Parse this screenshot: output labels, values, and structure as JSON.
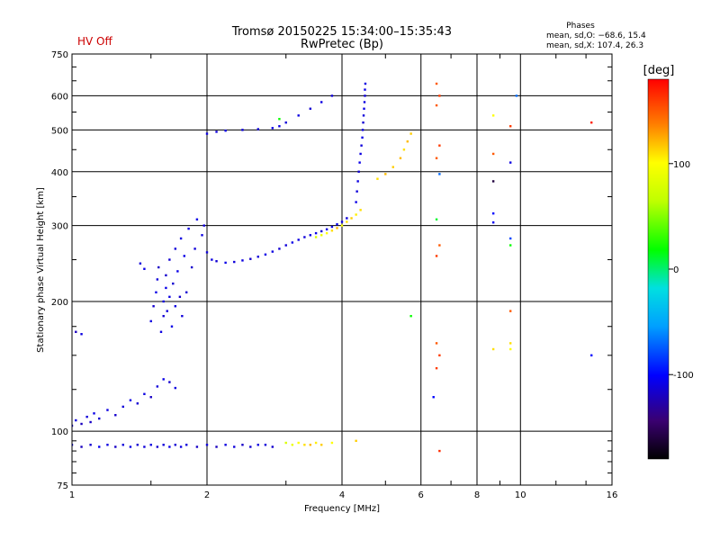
{
  "chart_data": {
    "type": "scatter",
    "title": "Tromsø 20150225 15:34:00–15:35:43",
    "subtitle": "RwPretec (Bp)",
    "status_label": "HV Off",
    "status_color": "#cc0000",
    "xlabel": "Frequency [MHz]",
    "ylabel": "Stationary phase Virtual Height [km]",
    "x_scale": "log",
    "y_scale": "log",
    "xlim": [
      1,
      16
    ],
    "ylim": [
      75,
      750
    ],
    "x_ticks": [
      1,
      2,
      4,
      6,
      8,
      10,
      16
    ],
    "x_tick_labels": [
      "1",
      "2",
      "4",
      "6",
      "8",
      "10",
      "16"
    ],
    "y_ticks": [
      75,
      100,
      200,
      300,
      400,
      500,
      600,
      750
    ],
    "y_tick_labels": [
      "75",
      "100",
      "200",
      "300",
      "400",
      "500",
      "600",
      "750"
    ],
    "grid": true,
    "colorbar": {
      "label": "[deg]",
      "range": [
        -180,
        180
      ],
      "ticks": [
        100,
        0,
        -100
      ],
      "tick_labels": [
        "100",
        "0",
        "-100"
      ]
    },
    "stats": {
      "heading": "Phases",
      "line1": "mean, sd,O: −68.6, 15.4",
      "line2": "mean, sd,X: 107.4, 26.3"
    },
    "points": [
      [
        1.0,
        93,
        -110
      ],
      [
        1.05,
        92,
        -120
      ],
      [
        1.1,
        93,
        -115
      ],
      [
        1.15,
        92,
        -105
      ],
      [
        1.2,
        93,
        -110
      ],
      [
        1.25,
        92,
        -118
      ],
      [
        1.3,
        93,
        -112
      ],
      [
        1.35,
        92,
        -108
      ],
      [
        1.4,
        93,
        -115
      ],
      [
        1.45,
        92,
        -112
      ],
      [
        1.5,
        93,
        -110
      ],
      [
        1.55,
        92,
        -116
      ],
      [
        1.6,
        93,
        -112
      ],
      [
        1.65,
        92,
        -108
      ],
      [
        1.7,
        93,
        -114
      ],
      [
        1.75,
        92,
        -110
      ],
      [
        1.8,
        93,
        -112
      ],
      [
        1.9,
        92,
        -118
      ],
      [
        2.0,
        93,
        -112
      ],
      [
        2.1,
        92,
        -120
      ],
      [
        2.2,
        93,
        -110
      ],
      [
        2.3,
        92,
        -112
      ],
      [
        2.4,
        93,
        -118
      ],
      [
        2.5,
        92,
        -114
      ],
      [
        2.6,
        93,
        -110
      ],
      [
        2.7,
        93,
        -112
      ],
      [
        2.8,
        92,
        -116
      ],
      [
        3.0,
        94,
        80
      ],
      [
        3.1,
        93,
        90
      ],
      [
        3.2,
        94,
        100
      ],
      [
        3.3,
        93,
        110
      ],
      [
        3.4,
        93,
        120
      ],
      [
        3.5,
        94,
        105
      ],
      [
        3.6,
        93,
        115
      ],
      [
        3.8,
        94,
        100
      ],
      [
        4.3,
        95,
        115
      ],
      [
        1.0,
        103,
        -115
      ],
      [
        1.02,
        106,
        -110
      ],
      [
        1.05,
        104,
        -120
      ],
      [
        1.08,
        108,
        -112
      ],
      [
        1.1,
        105,
        -118
      ],
      [
        1.12,
        110,
        -108
      ],
      [
        1.15,
        107,
        -115
      ],
      [
        1.2,
        112,
        -110
      ],
      [
        1.25,
        109,
        -116
      ],
      [
        1.3,
        114,
        -112
      ],
      [
        1.35,
        118,
        -108
      ],
      [
        1.4,
        116,
        -114
      ],
      [
        1.45,
        122,
        -110
      ],
      [
        1.5,
        120,
        -118
      ],
      [
        1.55,
        127,
        -112
      ],
      [
        1.6,
        132,
        -108
      ],
      [
        1.65,
        130,
        -115
      ],
      [
        1.7,
        126,
        -110
      ],
      [
        1.02,
        170,
        -120
      ],
      [
        1.05,
        168,
        -110
      ],
      [
        1.42,
        245,
        -112
      ],
      [
        1.45,
        238,
        -108
      ],
      [
        1.5,
        180,
        -110
      ],
      [
        1.52,
        195,
        -115
      ],
      [
        1.54,
        210,
        -108
      ],
      [
        1.55,
        225,
        -112
      ],
      [
        1.56,
        240,
        -118
      ],
      [
        1.58,
        170,
        -110
      ],
      [
        1.6,
        185,
        -114
      ],
      [
        1.6,
        200,
        -110
      ],
      [
        1.62,
        215,
        -108
      ],
      [
        1.62,
        230,
        -116
      ],
      [
        1.63,
        190,
        -112
      ],
      [
        1.65,
        205,
        -110
      ],
      [
        1.65,
        250,
        -114
      ],
      [
        1.67,
        175,
        -108
      ],
      [
        1.68,
        220,
        -115
      ],
      [
        1.7,
        195,
        -110
      ],
      [
        1.7,
        265,
        -112
      ],
      [
        1.72,
        235,
        -108
      ],
      [
        1.74,
        205,
        -116
      ],
      [
        1.75,
        280,
        -110
      ],
      [
        1.76,
        185,
        -112
      ],
      [
        1.78,
        255,
        -108
      ],
      [
        1.8,
        210,
        -114
      ],
      [
        1.82,
        295,
        -110
      ],
      [
        1.85,
        240,
        -116
      ],
      [
        1.88,
        265,
        -112
      ],
      [
        1.9,
        310,
        -108
      ],
      [
        1.95,
        285,
        -110
      ],
      [
        1.97,
        300,
        -112
      ],
      [
        2.0,
        260,
        -112
      ],
      [
        2.05,
        250,
        -110
      ],
      [
        2.1,
        248,
        -114
      ],
      [
        2.2,
        246,
        -108
      ],
      [
        2.3,
        247,
        -112
      ],
      [
        2.4,
        249,
        -110
      ],
      [
        2.5,
        251,
        -116
      ],
      [
        2.6,
        254,
        -112
      ],
      [
        2.7,
        257,
        -108
      ],
      [
        2.8,
        261,
        -110
      ],
      [
        2.9,
        265,
        -114
      ],
      [
        3.0,
        270,
        -112
      ],
      [
        3.1,
        274,
        -108
      ],
      [
        3.2,
        278,
        -110
      ],
      [
        3.3,
        282,
        -112
      ],
      [
        3.4,
        285,
        -110
      ],
      [
        3.5,
        288,
        -108
      ],
      [
        3.6,
        291,
        -114
      ],
      [
        3.7,
        294,
        -110
      ],
      [
        3.8,
        298,
        -112
      ],
      [
        3.9,
        302,
        -108
      ],
      [
        4.0,
        306,
        -110
      ],
      [
        4.1,
        312,
        -112
      ],
      [
        3.5,
        282,
        80
      ],
      [
        3.6,
        285,
        90
      ],
      [
        3.7,
        288,
        100
      ],
      [
        3.8,
        292,
        110
      ],
      [
        3.9,
        296,
        120
      ],
      [
        4.0,
        300,
        100
      ],
      [
        4.1,
        306,
        110
      ],
      [
        4.2,
        312,
        115
      ],
      [
        4.3,
        318,
        105
      ],
      [
        4.4,
        326,
        110
      ],
      [
        4.3,
        340,
        -108
      ],
      [
        4.32,
        360,
        -112
      ],
      [
        4.34,
        380,
        -110
      ],
      [
        4.36,
        400,
        -114
      ],
      [
        4.38,
        420,
        -108
      ],
      [
        4.4,
        440,
        -110
      ],
      [
        4.42,
        460,
        -112
      ],
      [
        4.44,
        480,
        -108
      ],
      [
        4.45,
        500,
        -110
      ],
      [
        4.46,
        520,
        -114
      ],
      [
        4.47,
        540,
        -112
      ],
      [
        4.48,
        560,
        -108
      ],
      [
        4.49,
        580,
        -110
      ],
      [
        4.5,
        600,
        -112
      ],
      [
        4.5,
        620,
        -108
      ],
      [
        4.51,
        640,
        -110
      ],
      [
        4.8,
        385,
        110
      ],
      [
        5.0,
        395,
        120
      ],
      [
        5.2,
        410,
        115
      ],
      [
        5.4,
        430,
        120
      ],
      [
        5.5,
        450,
        110
      ],
      [
        5.6,
        470,
        120
      ],
      [
        5.7,
        490,
        115
      ],
      [
        2.0,
        490,
        -110
      ],
      [
        2.1,
        495,
        -112
      ],
      [
        2.2,
        498,
        -108
      ],
      [
        2.4,
        500,
        -110
      ],
      [
        2.6,
        502,
        -112
      ],
      [
        2.8,
        505,
        -108
      ],
      [
        2.9,
        510,
        -110
      ],
      [
        3.0,
        520,
        -112
      ],
      [
        3.2,
        540,
        -110
      ],
      [
        3.4,
        560,
        -114
      ],
      [
        3.6,
        580,
        -110
      ],
      [
        3.8,
        600,
        -112
      ],
      [
        2.9,
        530,
        20
      ],
      [
        6.5,
        640,
        150
      ],
      [
        6.6,
        600,
        160
      ],
      [
        6.5,
        570,
        150
      ],
      [
        6.6,
        460,
        160
      ],
      [
        6.5,
        430,
        150
      ],
      [
        6.6,
        395,
        -70
      ],
      [
        6.5,
        310,
        10
      ],
      [
        6.6,
        270,
        150
      ],
      [
        6.5,
        255,
        160
      ],
      [
        6.5,
        160,
        150
      ],
      [
        6.6,
        150,
        160
      ],
      [
        6.5,
        140,
        160
      ],
      [
        6.4,
        120,
        -100
      ],
      [
        6.6,
        90,
        165
      ],
      [
        5.7,
        185,
        20
      ],
      [
        8.7,
        540,
        100
      ],
      [
        8.7,
        440,
        150
      ],
      [
        8.7,
        380,
        -160
      ],
      [
        8.7,
        320,
        -100
      ],
      [
        8.7,
        305,
        -105
      ],
      [
        8.7,
        155,
        110
      ],
      [
        9.5,
        510,
        160
      ],
      [
        9.5,
        420,
        -110
      ],
      [
        9.5,
        280,
        -80
      ],
      [
        9.5,
        270,
        20
      ],
      [
        9.5,
        190,
        150
      ],
      [
        9.5,
        160,
        110
      ],
      [
        9.5,
        155,
        100
      ],
      [
        9.8,
        600,
        -70
      ],
      [
        14.4,
        520,
        170
      ],
      [
        14.4,
        150,
        -100
      ]
    ]
  }
}
